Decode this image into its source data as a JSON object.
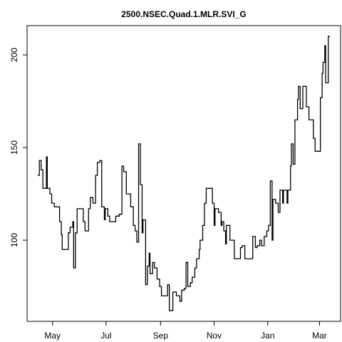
{
  "chart_data": {
    "type": "line",
    "step": true,
    "title": "2500.NSEC.Quad.1.MLR.SVI_G",
    "x": [
      -17,
      -15,
      -13,
      -11,
      -8,
      -7,
      -6,
      -3,
      -1,
      2,
      7,
      8,
      10,
      11,
      16,
      18,
      20,
      23,
      24,
      26,
      28,
      33,
      35,
      37,
      39,
      41,
      43,
      46,
      49,
      51,
      54,
      56,
      59,
      60,
      63,
      65,
      70,
      72,
      76,
      79,
      81,
      84,
      87,
      89,
      92,
      94,
      96,
      98,
      100,
      102,
      103,
      106,
      108,
      110,
      111,
      114,
      116,
      119,
      122,
      124,
      128,
      131,
      133,
      137,
      141,
      145,
      147,
      150,
      152,
      154,
      157,
      159,
      162,
      164,
      167,
      168,
      171,
      173,
      175,
      180,
      182,
      184,
      185,
      189,
      192,
      193,
      195,
      197,
      198,
      201,
      202,
      205,
      207,
      211,
      214,
      216,
      219,
      226,
      228,
      231,
      233,
      236,
      238,
      241,
      244,
      246,
      248,
      250,
      251,
      254,
      255,
      257,
      259,
      262,
      263,
      267,
      268,
      271,
      272,
      274,
      276,
      279,
      280,
      282,
      285,
      287,
      289,
      292,
      294,
      297,
      299,
      303,
      305,
      307,
      308,
      310,
      311,
      314,
      316
    ],
    "series": [
      {
        "color": "#000000",
        "values": [
          135,
          143,
          138,
          128,
          128,
          145,
          128,
          125,
          120,
          118,
          118,
          110,
          103,
          95,
          95,
          104,
          107,
          110,
          85,
          104,
          117,
          117,
          110,
          105,
          105,
          117,
          123,
          120,
          135,
          142,
          143,
          118,
          111,
          117,
          113,
          110,
          110,
          113,
          114,
          140,
          137,
          125,
          125,
          118,
          108,
          105,
          99,
          152,
          130,
          104,
          111,
          76,
          86,
          93,
          82,
          88,
          85,
          79,
          75,
          70,
          70,
          76,
          62,
          72,
          70,
          67,
          73,
          74,
          88,
          75,
          77,
          80,
          85,
          90,
          95,
          100,
          108,
          120,
          128,
          128,
          120,
          108,
          117,
          115,
          108,
          110,
          105,
          98,
          108,
          108,
          100,
          100,
          90,
          90,
          96,
          97,
          90,
          90,
          102,
          96,
          97,
          100,
          97,
          102,
          105,
          108,
          132,
          100,
          122,
          120,
          120,
          115,
          127,
          120,
          127,
          120,
          127,
          140,
          152,
          141,
          165,
          176,
          183,
          171,
          183,
          183,
          172,
          165,
          165,
          155,
          148,
          148,
          177,
          190,
          196,
          205,
          185,
          210,
          210
        ]
      }
    ],
    "xlim": [
      -29,
      328
    ],
    "xticks": [
      {
        "value": 0,
        "label": "May"
      },
      {
        "value": 61,
        "label": "Jul"
      },
      {
        "value": 123,
        "label": "Sep"
      },
      {
        "value": 184,
        "label": "Nov"
      },
      {
        "value": 245,
        "label": "Jan"
      },
      {
        "value": 304,
        "label": "Mar"
      }
    ],
    "ylim": [
      56.2,
      215.8
    ],
    "yticks": [
      100,
      150,
      200
    ]
  }
}
